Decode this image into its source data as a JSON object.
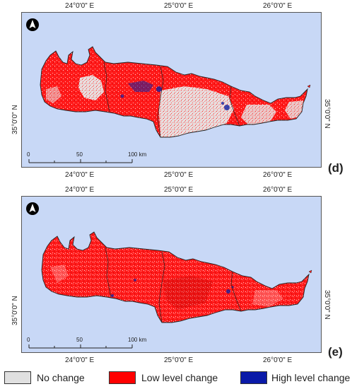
{
  "panels": [
    {
      "letter": "(d)",
      "top_ticks": [
        "24°0'0\" E",
        "25°0'0\" E",
        "26°0'0\" E"
      ],
      "bottom_ticks": [
        "24°0'0\" E",
        "25°0'0\" E",
        "26°0'0\" E"
      ],
      "lat_left": "35°0'0\" N",
      "lat_right": "35°0'0\" N",
      "scalebar": {
        "zero": "0",
        "mid": "50",
        "end": "100 km"
      }
    },
    {
      "letter": "(e)",
      "top_ticks": [
        "24°0'0\" E",
        "25°0'0\" E",
        "26°0'0\" E"
      ],
      "bottom_ticks": [
        "24°0'0\" E",
        "25°0'0\" E",
        "26°0'0\" E"
      ],
      "lat_left": "35°0'0\" N",
      "lat_right": "35°0'0\" N",
      "scalebar": {
        "zero": "0",
        "mid": "50",
        "end": "100 km"
      }
    }
  ],
  "legend": [
    {
      "label": "No change",
      "color": "#e0e0e0"
    },
    {
      "label": "Low level change",
      "color": "#ff0000"
    },
    {
      "label": "High level change",
      "color": "#0a1aa8"
    }
  ],
  "colors": {
    "sea": "#c8d8f6",
    "land_low": "#ff1a1a",
    "no_change": "#e6e6e6",
    "high": "#1020a0"
  },
  "icons": [
    "north-arrow-icon"
  ]
}
